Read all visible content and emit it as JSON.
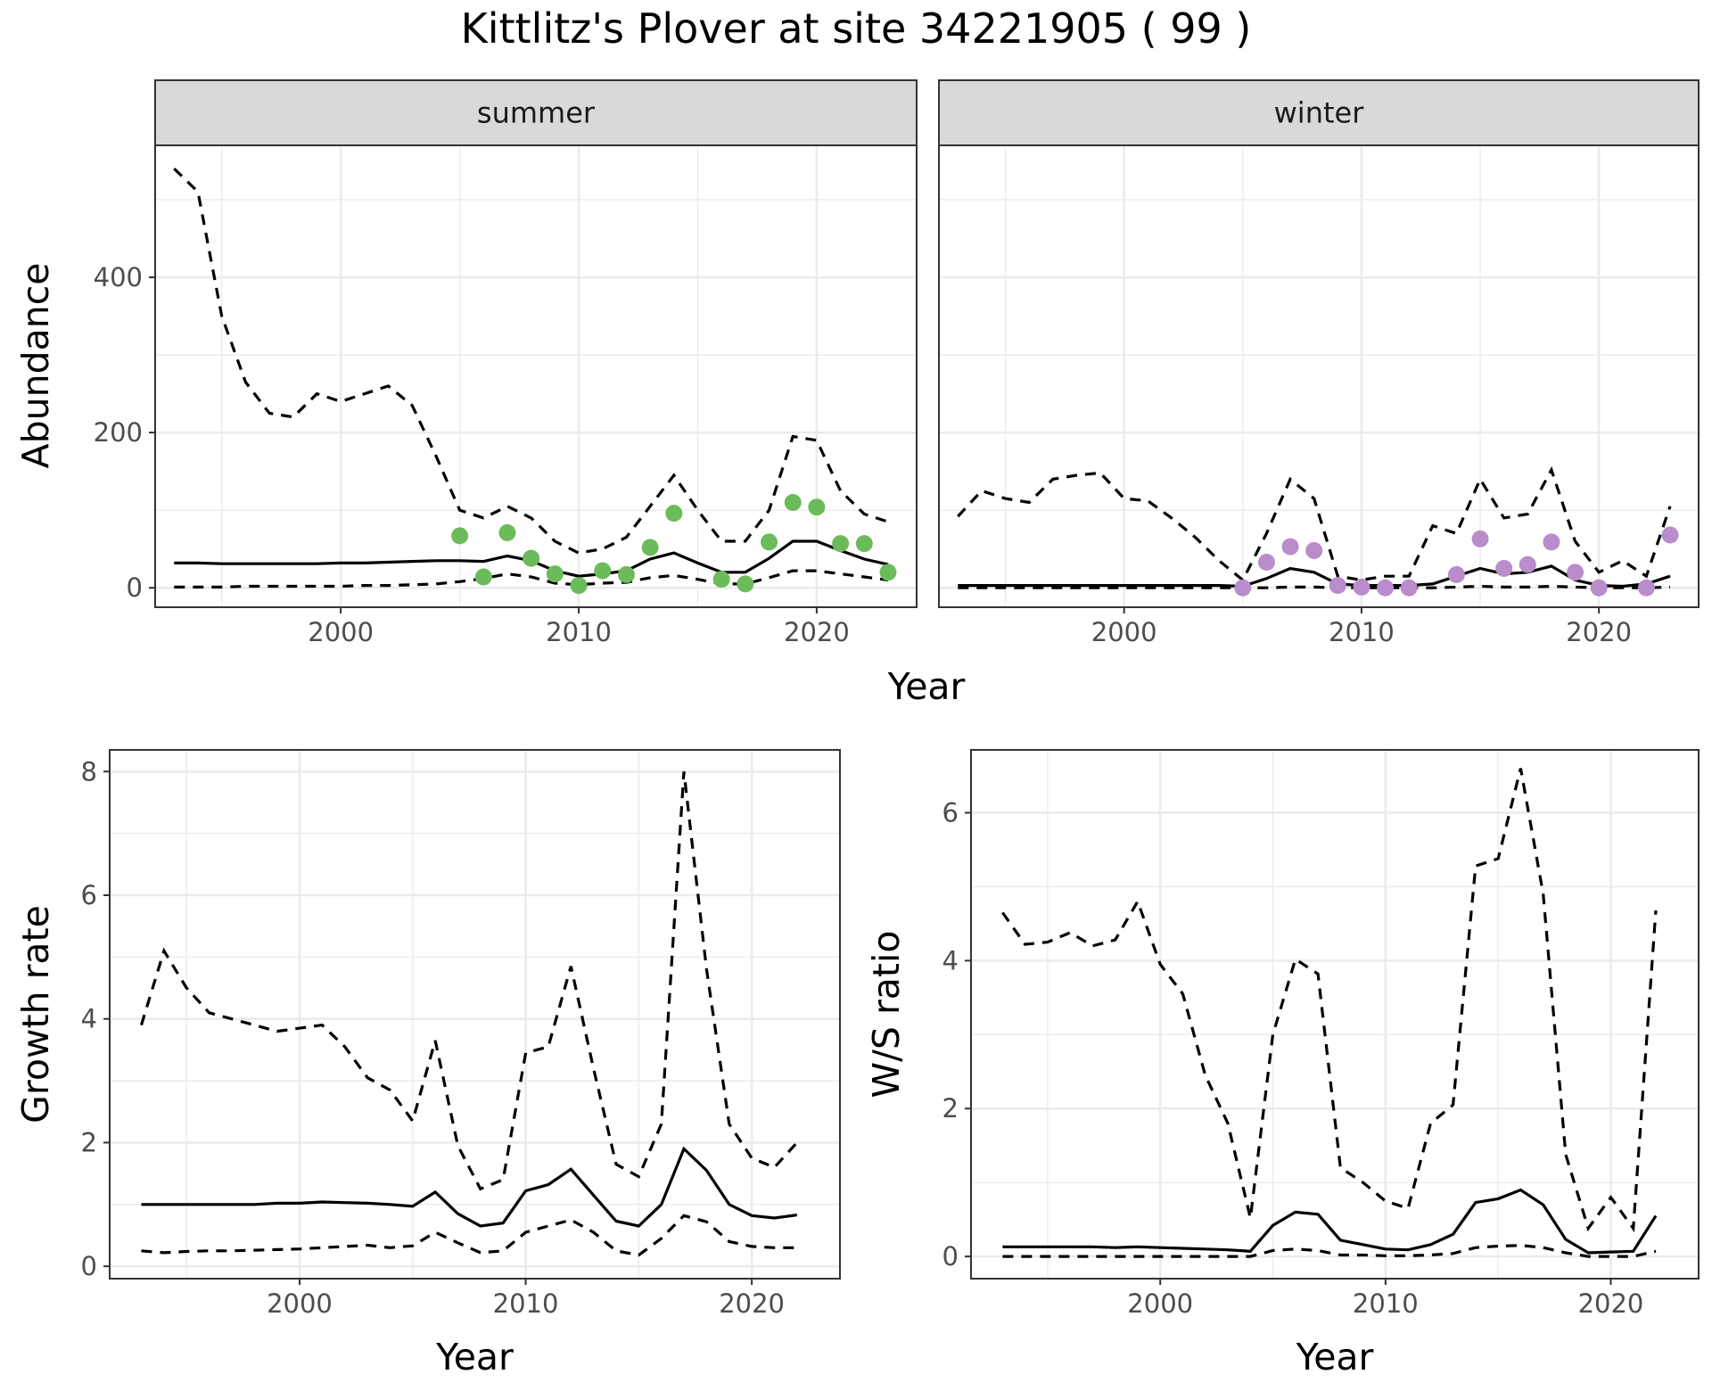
{
  "figure": {
    "title": "Kittlitz's Plover at site 34221905 ( 99 )"
  },
  "colors": {
    "summer_points": "#6cbb5a",
    "winter_points": "#b98ccb",
    "lines": "#000000",
    "strip": "#d9d9d9"
  },
  "chart_data": [
    {
      "type": "line",
      "name": "abundance-summer",
      "facet_label": "summer",
      "xlabel": "Year",
      "ylabel": "Abundance",
      "xlim": [
        1992.2,
        2024.2
      ],
      "ylim": [
        -25,
        570
      ],
      "x_ticks": [
        2000,
        2010,
        2020
      ],
      "y_ticks": [
        0,
        200,
        400
      ],
      "grid": true,
      "x": [
        1993,
        1994,
        1995,
        1996,
        1997,
        1998,
        1999,
        2000,
        2001,
        2002,
        2003,
        2004,
        2005,
        2006,
        2007,
        2008,
        2009,
        2010,
        2011,
        2012,
        2013,
        2014,
        2015,
        2016,
        2017,
        2018,
        2019,
        2020,
        2021,
        2022,
        2023
      ],
      "series": [
        {
          "style": "solid",
          "values": [
            32,
            32,
            31,
            31,
            31,
            31,
            31,
            32,
            32,
            33,
            34,
            35,
            35,
            34,
            41,
            35,
            22,
            15,
            18,
            22,
            37,
            45,
            32,
            20,
            20,
            38,
            60,
            60,
            48,
            37,
            30
          ]
        },
        {
          "style": "dashed",
          "values": [
            540,
            510,
            350,
            265,
            225,
            220,
            250,
            240,
            250,
            260,
            235,
            170,
            100,
            90,
            105,
            90,
            60,
            45,
            50,
            65,
            105,
            145,
            100,
            60,
            60,
            100,
            195,
            190,
            125,
            95,
            85
          ]
        },
        {
          "style": "dashed",
          "values": [
            1,
            1,
            1,
            2,
            2,
            2,
            2,
            2,
            3,
            3,
            4,
            5,
            8,
            12,
            18,
            14,
            6,
            4,
            6,
            7,
            13,
            16,
            11,
            5,
            5,
            13,
            22,
            22,
            18,
            14,
            10
          ]
        }
      ],
      "points": {
        "x": [
          2005,
          2006,
          2007,
          2008,
          2009,
          2010,
          2011,
          2012,
          2013,
          2014,
          2016,
          2017,
          2018,
          2019,
          2020,
          2021,
          2022,
          2023
        ],
        "y": [
          67,
          14,
          71,
          38,
          18,
          3,
          22,
          17,
          52,
          96,
          11,
          5,
          59,
          110,
          104,
          57,
          57,
          20
        ]
      }
    },
    {
      "type": "line",
      "name": "abundance-winter",
      "facet_label": "winter",
      "xlabel": "Year",
      "ylabel": "Abundance",
      "xlim": [
        1992.2,
        2024.2
      ],
      "ylim": [
        -25,
        570
      ],
      "x_ticks": [
        2000,
        2010,
        2020
      ],
      "y_ticks": [
        0,
        200,
        400
      ],
      "grid": true,
      "x": [
        1993,
        1994,
        1995,
        1996,
        1997,
        1998,
        1999,
        2000,
        2001,
        2002,
        2003,
        2004,
        2005,
        2006,
        2007,
        2008,
        2009,
        2010,
        2011,
        2012,
        2013,
        2014,
        2015,
        2016,
        2017,
        2018,
        2019,
        2020,
        2021,
        2022,
        2023
      ],
      "series": [
        {
          "style": "solid",
          "values": [
            3,
            3,
            3,
            3,
            3,
            3,
            3,
            3,
            3,
            3,
            3,
            3,
            2,
            12,
            25,
            20,
            5,
            3,
            3,
            3,
            5,
            15,
            25,
            18,
            20,
            28,
            10,
            3,
            2,
            5,
            15
          ]
        },
        {
          "style": "dashed",
          "values": [
            92,
            125,
            115,
            110,
            140,
            145,
            148,
            115,
            112,
            90,
            65,
            35,
            10,
            70,
            140,
            115,
            15,
            10,
            15,
            15,
            80,
            70,
            140,
            90,
            95,
            152,
            60,
            20,
            35,
            15,
            105
          ]
        },
        {
          "style": "dashed",
          "values": [
            0,
            0,
            0,
            0,
            0,
            0,
            0,
            0,
            0,
            0,
            0,
            0,
            0,
            0,
            1,
            1,
            0,
            0,
            0,
            0,
            0,
            1,
            2,
            1,
            1,
            2,
            1,
            0,
            0,
            0,
            1
          ]
        }
      ],
      "points": {
        "x": [
          2005,
          2006,
          2007,
          2008,
          2009,
          2010,
          2011,
          2012,
          2014,
          2015,
          2016,
          2017,
          2018,
          2019,
          2020,
          2022,
          2023
        ],
        "y": [
          0,
          33,
          53,
          48,
          3,
          1,
          0,
          0,
          17,
          63,
          25,
          30,
          59,
          20,
          0,
          0,
          68
        ]
      }
    },
    {
      "type": "line",
      "name": "growth-rate",
      "xlabel": "Year",
      "ylabel": "Growth rate",
      "xlim": [
        1991.6,
        2023.9
      ],
      "ylim": [
        -0.2,
        8.35
      ],
      "x_ticks": [
        2000,
        2010,
        2020
      ],
      "y_ticks": [
        0,
        2,
        4,
        6,
        8
      ],
      "grid": true,
      "x": [
        1993,
        1994,
        1995,
        1996,
        1997,
        1998,
        1999,
        2000,
        2001,
        2002,
        2003,
        2004,
        2005,
        2006,
        2007,
        2008,
        2009,
        2010,
        2011,
        2012,
        2013,
        2014,
        2015,
        2016,
        2017,
        2018,
        2019,
        2020,
        2021,
        2022
      ],
      "series": [
        {
          "style": "solid",
          "values": [
            1.0,
            1.0,
            1.0,
            1.0,
            1.0,
            1.0,
            1.02,
            1.02,
            1.04,
            1.03,
            1.02,
            1.0,
            0.97,
            1.2,
            0.85,
            0.65,
            0.7,
            1.22,
            1.32,
            1.57,
            1.15,
            0.73,
            0.65,
            1.0,
            1.9,
            1.55,
            1.0,
            0.82,
            0.78,
            0.83
          ]
        },
        {
          "style": "dashed",
          "values": [
            3.9,
            5.1,
            4.5,
            4.1,
            4.0,
            3.9,
            3.8,
            3.85,
            3.9,
            3.55,
            3.05,
            2.85,
            2.35,
            3.65,
            1.95,
            1.25,
            1.4,
            3.45,
            3.55,
            4.85,
            3.2,
            1.65,
            1.45,
            2.3,
            8.0,
            4.8,
            2.3,
            1.75,
            1.6,
            2.0
          ]
        },
        {
          "style": "dashed",
          "values": [
            0.25,
            0.22,
            0.24,
            0.25,
            0.25,
            0.26,
            0.27,
            0.28,
            0.3,
            0.32,
            0.34,
            0.3,
            0.33,
            0.55,
            0.38,
            0.22,
            0.25,
            0.55,
            0.65,
            0.75,
            0.55,
            0.25,
            0.18,
            0.45,
            0.82,
            0.72,
            0.4,
            0.32,
            0.3,
            0.3
          ]
        }
      ]
    },
    {
      "type": "line",
      "name": "ws-ratio",
      "xlabel": "Year",
      "ylabel": "W/S ratio",
      "xlim": [
        1991.6,
        2023.9
      ],
      "ylim": [
        -0.3,
        6.85
      ],
      "x_ticks": [
        2000,
        2010,
        2020
      ],
      "y_ticks": [
        0,
        2,
        4,
        6
      ],
      "grid": true,
      "x": [
        1993,
        1994,
        1995,
        1996,
        1997,
        1998,
        1999,
        2000,
        2001,
        2002,
        2003,
        2004,
        2005,
        2006,
        2007,
        2008,
        2009,
        2010,
        2011,
        2012,
        2013,
        2014,
        2015,
        2016,
        2017,
        2018,
        2019,
        2020,
        2021,
        2022
      ],
      "series": [
        {
          "style": "solid",
          "values": [
            0.13,
            0.13,
            0.13,
            0.13,
            0.13,
            0.12,
            0.13,
            0.12,
            0.11,
            0.1,
            0.09,
            0.07,
            0.42,
            0.6,
            0.57,
            0.22,
            0.16,
            0.1,
            0.09,
            0.16,
            0.3,
            0.73,
            0.78,
            0.9,
            0.7,
            0.23,
            0.05,
            0.06,
            0.07,
            0.55
          ]
        },
        {
          "style": "dashed",
          "values": [
            4.65,
            4.22,
            4.25,
            4.38,
            4.2,
            4.28,
            4.8,
            3.95,
            3.55,
            2.45,
            1.8,
            0.52,
            3.0,
            4.02,
            3.82,
            1.2,
            1.0,
            0.75,
            0.65,
            1.8,
            2.05,
            5.28,
            5.38,
            6.6,
            4.9,
            1.38,
            0.38,
            0.8,
            0.38,
            4.68
          ]
        },
        {
          "style": "dashed",
          "values": [
            0.0,
            0.0,
            0.0,
            0.0,
            0.0,
            0.0,
            0.0,
            0.0,
            0.0,
            0.0,
            0.0,
            0.0,
            0.08,
            0.1,
            0.08,
            0.02,
            0.02,
            0.01,
            0.01,
            0.02,
            0.04,
            0.12,
            0.14,
            0.15,
            0.12,
            0.05,
            0.0,
            0.0,
            0.0,
            0.07
          ]
        }
      ]
    }
  ]
}
